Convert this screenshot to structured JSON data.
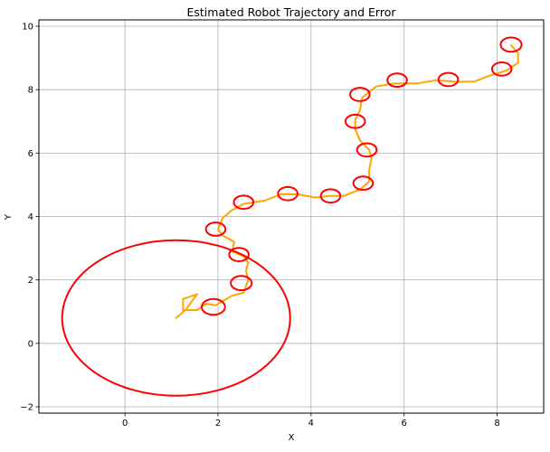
{
  "chart_data": {
    "type": "line",
    "title": "Estimated Robot Trajectory and Error",
    "xlabel": "X",
    "ylabel": "Y",
    "xlim": [
      -1.85,
      9.0
    ],
    "ylim": [
      -2.2,
      10.2
    ],
    "grid": true,
    "xticks": [
      0,
      2,
      4,
      6,
      8
    ],
    "yticks": [
      -2,
      0,
      2,
      4,
      6,
      8,
      10
    ],
    "colors": {
      "trajectory": "#ffa500",
      "error": "#ff0000"
    },
    "trajectory": [
      [
        1.1,
        0.8
      ],
      [
        1.3,
        1.05
      ],
      [
        1.55,
        1.55
      ],
      [
        1.25,
        1.4
      ],
      [
        1.25,
        1.05
      ],
      [
        1.55,
        1.05
      ],
      [
        1.75,
        1.25
      ],
      [
        1.95,
        1.2
      ],
      [
        2.3,
        1.5
      ],
      [
        2.55,
        1.6
      ],
      [
        2.65,
        2.0
      ],
      [
        2.6,
        2.3
      ],
      [
        2.65,
        2.55
      ],
      [
        2.55,
        2.75
      ],
      [
        2.3,
        2.9
      ],
      [
        2.35,
        3.2
      ],
      [
        2.1,
        3.4
      ],
      [
        2.0,
        3.6
      ],
      [
        2.1,
        3.95
      ],
      [
        2.3,
        4.2
      ],
      [
        2.55,
        4.4
      ],
      [
        3.0,
        4.5
      ],
      [
        3.35,
        4.7
      ],
      [
        3.7,
        4.7
      ],
      [
        4.1,
        4.6
      ],
      [
        4.4,
        4.65
      ],
      [
        4.7,
        4.65
      ],
      [
        5.05,
        4.85
      ],
      [
        5.25,
        5.1
      ],
      [
        5.25,
        5.45
      ],
      [
        5.3,
        5.85
      ],
      [
        5.25,
        6.1
      ],
      [
        5.05,
        6.4
      ],
      [
        4.95,
        6.75
      ],
      [
        4.95,
        7.05
      ],
      [
        5.05,
        7.35
      ],
      [
        5.1,
        7.75
      ],
      [
        5.4,
        8.1
      ],
      [
        5.8,
        8.2
      ],
      [
        6.3,
        8.2
      ],
      [
        6.7,
        8.3
      ],
      [
        7.1,
        8.25
      ],
      [
        7.5,
        8.25
      ],
      [
        7.85,
        8.45
      ],
      [
        8.2,
        8.6
      ],
      [
        8.45,
        8.85
      ],
      [
        8.45,
        9.15
      ],
      [
        8.3,
        9.4
      ]
    ],
    "error_ellipses": [
      {
        "center": [
          1.1,
          0.8
        ],
        "width": 4.9,
        "height": 4.9
      },
      {
        "center": [
          1.9,
          1.15
        ],
        "width": 0.5,
        "height": 0.5
      },
      {
        "center": [
          2.5,
          1.9
        ],
        "width": 0.45,
        "height": 0.45
      },
      {
        "center": [
          2.45,
          2.8
        ],
        "width": 0.42,
        "height": 0.42
      },
      {
        "center": [
          1.95,
          3.6
        ],
        "width": 0.42,
        "height": 0.42
      },
      {
        "center": [
          2.55,
          4.45
        ],
        "width": 0.42,
        "height": 0.42
      },
      {
        "center": [
          3.5,
          4.72
        ],
        "width": 0.42,
        "height": 0.42
      },
      {
        "center": [
          4.42,
          4.65
        ],
        "width": 0.42,
        "height": 0.42
      },
      {
        "center": [
          5.12,
          5.05
        ],
        "width": 0.42,
        "height": 0.42
      },
      {
        "center": [
          5.2,
          6.1
        ],
        "width": 0.42,
        "height": 0.42
      },
      {
        "center": [
          4.95,
          7.0
        ],
        "width": 0.42,
        "height": 0.42
      },
      {
        "center": [
          5.05,
          7.85
        ],
        "width": 0.42,
        "height": 0.42
      },
      {
        "center": [
          5.85,
          8.3
        ],
        "width": 0.42,
        "height": 0.42
      },
      {
        "center": [
          6.95,
          8.32
        ],
        "width": 0.42,
        "height": 0.42
      },
      {
        "center": [
          8.1,
          8.65
        ],
        "width": 0.42,
        "height": 0.42
      },
      {
        "center": [
          8.3,
          9.42
        ],
        "width": 0.45,
        "height": 0.45
      }
    ]
  }
}
